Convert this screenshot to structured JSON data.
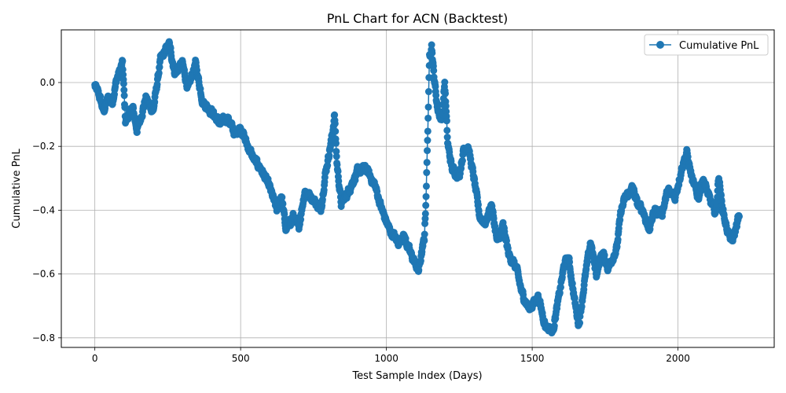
{
  "chart_data": {
    "type": "line",
    "title": "PnL Chart for ACN (Backtest)",
    "xlabel": "Test Sample Index (Days)",
    "ylabel": "Cumulative PnL",
    "xlim": [
      -115,
      2330
    ],
    "ylim": [
      -0.83,
      0.165
    ],
    "xticks": [
      0,
      500,
      1000,
      1500,
      2000
    ],
    "xtick_labels": [
      "0",
      "500",
      "1000",
      "1500",
      "2000"
    ],
    "yticks": [
      0.0,
      -0.2,
      -0.4,
      -0.6,
      -0.8
    ],
    "ytick_labels": [
      "0.0",
      "−0.2",
      "−0.4",
      "−0.6",
      "−0.8"
    ],
    "grid": true,
    "legend_position": "top-right",
    "color": "#1f77b4",
    "series": [
      {
        "name": "Cumulative PnL",
        "marker": "circle",
        "keypoints": [
          [
            0,
            -0.01
          ],
          [
            15,
            -0.04
          ],
          [
            30,
            -0.09
          ],
          [
            45,
            -0.05
          ],
          [
            60,
            -0.06
          ],
          [
            75,
            0.01
          ],
          [
            95,
            0.06
          ],
          [
            105,
            -0.12
          ],
          [
            130,
            -0.08
          ],
          [
            145,
            -0.15
          ],
          [
            175,
            -0.05
          ],
          [
            200,
            -0.09
          ],
          [
            225,
            0.07
          ],
          [
            255,
            0.12
          ],
          [
            275,
            0.03
          ],
          [
            300,
            0.06
          ],
          [
            320,
            -0.02
          ],
          [
            345,
            0.06
          ],
          [
            370,
            -0.06
          ],
          [
            400,
            -0.09
          ],
          [
            430,
            -0.13
          ],
          [
            455,
            -0.11
          ],
          [
            480,
            -0.16
          ],
          [
            500,
            -0.14
          ],
          [
            520,
            -0.19
          ],
          [
            545,
            -0.24
          ],
          [
            570,
            -0.27
          ],
          [
            600,
            -0.33
          ],
          [
            625,
            -0.4
          ],
          [
            640,
            -0.35
          ],
          [
            655,
            -0.46
          ],
          [
            680,
            -0.42
          ],
          [
            700,
            -0.45
          ],
          [
            720,
            -0.34
          ],
          [
            745,
            -0.36
          ],
          [
            775,
            -0.4
          ],
          [
            790,
            -0.29
          ],
          [
            815,
            -0.16
          ],
          [
            822,
            -0.1
          ],
          [
            830,
            -0.25
          ],
          [
            845,
            -0.38
          ],
          [
            870,
            -0.34
          ],
          [
            900,
            -0.28
          ],
          [
            930,
            -0.27
          ],
          [
            960,
            -0.32
          ],
          [
            985,
            -0.4
          ],
          [
            1010,
            -0.46
          ],
          [
            1040,
            -0.5
          ],
          [
            1060,
            -0.48
          ],
          [
            1080,
            -0.53
          ],
          [
            1110,
            -0.59
          ],
          [
            1130,
            -0.49
          ],
          [
            1135,
            -0.38
          ],
          [
            1140,
            -0.22
          ],
          [
            1148,
            0.08
          ],
          [
            1155,
            0.12
          ],
          [
            1162,
            0.03
          ],
          [
            1175,
            -0.08
          ],
          [
            1190,
            -0.12
          ],
          [
            1200,
            0.0
          ],
          [
            1210,
            -0.19
          ],
          [
            1225,
            -0.27
          ],
          [
            1250,
            -0.29
          ],
          [
            1265,
            -0.21
          ],
          [
            1280,
            -0.2
          ],
          [
            1300,
            -0.3
          ],
          [
            1320,
            -0.42
          ],
          [
            1340,
            -0.44
          ],
          [
            1360,
            -0.38
          ],
          [
            1380,
            -0.5
          ],
          [
            1400,
            -0.45
          ],
          [
            1420,
            -0.54
          ],
          [
            1445,
            -0.58
          ],
          [
            1465,
            -0.66
          ],
          [
            1490,
            -0.71
          ],
          [
            1520,
            -0.67
          ],
          [
            1545,
            -0.76
          ],
          [
            1570,
            -0.78
          ],
          [
            1590,
            -0.68
          ],
          [
            1610,
            -0.57
          ],
          [
            1625,
            -0.55
          ],
          [
            1645,
            -0.68
          ],
          [
            1660,
            -0.76
          ],
          [
            1680,
            -0.62
          ],
          [
            1700,
            -0.5
          ],
          [
            1720,
            -0.6
          ],
          [
            1740,
            -0.53
          ],
          [
            1760,
            -0.58
          ],
          [
            1790,
            -0.52
          ],
          [
            1805,
            -0.4
          ],
          [
            1820,
            -0.36
          ],
          [
            1845,
            -0.33
          ],
          [
            1860,
            -0.38
          ],
          [
            1880,
            -0.4
          ],
          [
            1900,
            -0.46
          ],
          [
            1920,
            -0.4
          ],
          [
            1945,
            -0.41
          ],
          [
            1965,
            -0.34
          ],
          [
            1990,
            -0.36
          ],
          [
            2015,
            -0.26
          ],
          [
            2030,
            -0.22
          ],
          [
            2050,
            -0.31
          ],
          [
            2070,
            -0.36
          ],
          [
            2085,
            -0.3
          ],
          [
            2110,
            -0.37
          ],
          [
            2130,
            -0.41
          ],
          [
            2140,
            -0.29
          ],
          [
            2150,
            -0.38
          ],
          [
            2165,
            -0.45
          ],
          [
            2185,
            -0.5
          ],
          [
            2195,
            -0.47
          ],
          [
            2205,
            -0.43
          ],
          [
            2210,
            -0.42
          ]
        ]
      }
    ]
  }
}
